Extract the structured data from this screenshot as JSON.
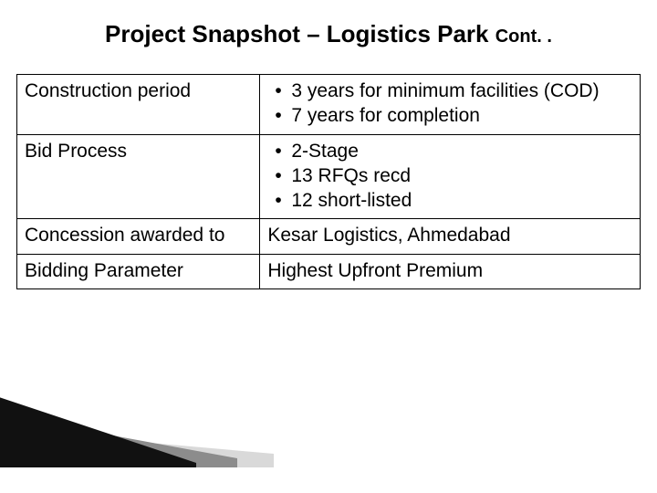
{
  "title": {
    "main": "Project  Snapshot – Logistics Park ",
    "cont": "Cont. ."
  },
  "table": {
    "columns": [
      "label",
      "value"
    ],
    "rows": [
      {
        "label": "Construction period",
        "value_type": "bullets",
        "bullets": [
          "3 years for minimum facilities (COD)",
          "7 years for completion"
        ]
      },
      {
        "label": "Bid Process",
        "value_type": "bullets",
        "bullets": [
          "2-Stage",
          "13 RFQs recd",
          "12 short-listed"
        ]
      },
      {
        "label": "Concession awarded to",
        "value_type": "text",
        "text": "Kesar Logistics, Ahmedabad"
      },
      {
        "label": "Bidding Parameter",
        "value_type": "text",
        "text": "Highest Upfront Premium"
      }
    ]
  },
  "style": {
    "title_main_fontsize": 26,
    "title_cont_fontsize": 20,
    "table_fontsize": 21,
    "border_color": "#000000",
    "text_color": "#000000",
    "background_color": "#ffffff"
  },
  "decor": {
    "colors": {
      "dark": "#111111",
      "mid": "#8c8c8c",
      "light": "#d9d9d9"
    }
  }
}
